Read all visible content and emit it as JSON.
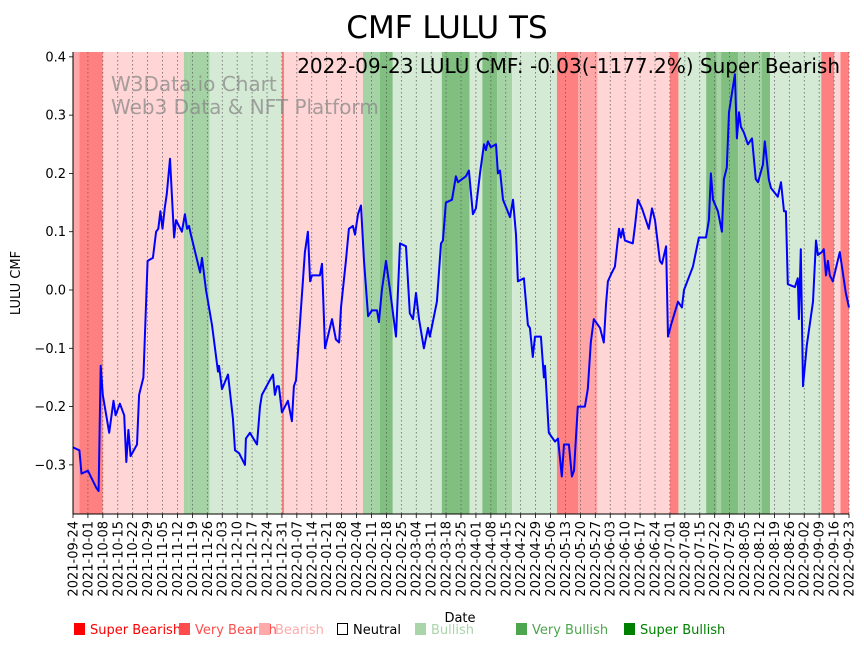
{
  "chart_data": {
    "type": "line",
    "title": "CMF LULU TS",
    "annotation": "2022-09-23 LULU CMF: -0.03(-1177.2%) Super Bearish",
    "watermark": [
      "W3Data.io Chart",
      "Web3 Data & NFT Platform"
    ],
    "xlabel": "Date",
    "ylabel": "LULU CMF",
    "start_date": "2021-09-24",
    "x_range_days": [
      0,
      364
    ],
    "ylim": [
      -0.38,
      0.41
    ],
    "yticks": [
      -0.3,
      -0.2,
      -0.1,
      0.0,
      0.1,
      0.2,
      0.3,
      0.4
    ],
    "ytick_labels": [
      "−0.3",
      "−0.2",
      "−0.1",
      "0.0",
      "0.1",
      "0.2",
      "0.3",
      "0.4"
    ],
    "xtick_labels": [
      "2021-09-24",
      "2021-10-01",
      "2021-10-08",
      "2021-10-15",
      "2021-10-22",
      "2021-10-29",
      "2021-11-05",
      "2021-11-12",
      "2021-11-19",
      "2021-11-26",
      "2021-12-03",
      "2021-12-10",
      "2021-12-17",
      "2021-12-24",
      "2021-12-31",
      "2022-01-07",
      "2022-01-14",
      "2022-01-21",
      "2022-01-28",
      "2022-02-04",
      "2022-02-11",
      "2022-02-18",
      "2022-02-25",
      "2022-03-04",
      "2022-03-11",
      "2022-03-18",
      "2022-03-25",
      "2022-04-01",
      "2022-04-08",
      "2022-04-15",
      "2022-04-22",
      "2022-04-29",
      "2022-05-06",
      "2022-05-13",
      "2022-05-20",
      "2022-05-27",
      "2022-06-03",
      "2022-06-10",
      "2022-06-17",
      "2022-06-24",
      "2022-07-01",
      "2022-07-08",
      "2022-07-15",
      "2022-07-22",
      "2022-07-29",
      "2022-08-05",
      "2022-08-12",
      "2022-08-19",
      "2022-08-26",
      "2022-09-02",
      "2022-09-09",
      "2022-09-16",
      "2022-09-23"
    ],
    "grid": "vertical-dotted",
    "line_color": "#0000ff",
    "series": [
      {
        "name": "LULU CMF",
        "days": [
          0,
          3,
          4,
          7,
          11,
          12,
          13,
          14,
          17,
          19,
          20,
          22,
          24,
          25,
          26,
          27,
          30,
          31,
          33,
          35,
          37.5,
          39,
          40,
          41,
          42,
          43,
          44,
          45.5,
          47.4,
          48.3,
          51.1,
          52.5,
          53.5,
          54.4,
          55.3,
          59.6,
          60.5,
          62.4,
          65.2,
          68,
          68.5,
          69.9,
          72.7,
          75,
          76,
          77.9,
          80.7,
          81.1,
          83,
          86.3,
          87.7,
          88.6,
          91.5,
          93.8,
          94.7,
          95.7,
          96.6,
          98,
          100.8,
          102.7,
          103.6,
          104.6,
          108.8,
          110.2,
          111.2,
          112.1,
          115.8,
          116.8,
          118.2,
          121.5,
          123.3,
          124.8,
          125.7,
          128,
          129.4,
          131.3,
          132.3,
          133.7,
          135.1,
          136.5,
          138.4,
          140.2,
          142.6,
          143.5,
          144.9,
          146.8,
          148.7,
          151.5,
          153.4,
          156.2,
          158,
          159.5,
          160.9,
          162.3,
          164.6,
          166.5,
          167.4,
          170.7,
          172.6,
          173.5,
          174.9,
          177.8,
          179.6,
          180.6,
          184.3,
          185.7,
          187.6,
          189,
          190.9,
          192.8,
          193.7,
          194.6,
          196,
          198.4,
          199.3,
          200.3,
          201.7,
          205,
          206.4,
          207.8,
          208.7,
          211.5,
          213.4,
          214.3,
          215.7,
          216.7,
          219.5,
          220.9,
          221.4,
          223.2,
          226.1,
          227.5,
          229.3,
          230.3,
          232.6,
          234,
          235,
          236.8,
          240.1,
          241.5,
          242.9,
          244.3,
          247.2,
          249,
          250,
          250.9,
          252.8,
          254.2,
          256.1,
          257,
          257.9,
          258.9,
          262.6,
          263.6,
          265,
          266.9,
          270.1,
          271.6,
          273,
          275.3,
          276.3,
          278.2,
          279.1,
          280.5,
          283.8,
          285.6,
          286.6,
          290.8,
          293.6,
          296.9,
          298.3,
          299.2,
          300.2,
          302.5,
          304.4,
          305.3,
          306.7,
          307.7,
          310.5,
          311.4,
          312.4,
          313.3,
          314.7,
          316.6,
          318.5,
          320.3,
          321.3,
          323.6,
          324.5,
          326.4,
          327.4,
          330.6,
          332.1,
          333.5,
          334.4,
          335.3,
          338.6,
          340,
          340.5,
          341.4,
          342.4,
          344.2,
          347.1,
          348.5,
          349.4,
          351.3,
          352.2,
          353.2,
          354.1,
          355,
          356.4,
          359.7,
          361.1,
          362.5,
          364
        ],
        "values": [
          -0.27,
          -0.275,
          -0.315,
          -0.31,
          -0.34,
          -0.345,
          -0.13,
          -0.18,
          -0.245,
          -0.19,
          -0.215,
          -0.195,
          -0.215,
          -0.295,
          -0.24,
          -0.285,
          -0.265,
          -0.18,
          -0.15,
          0.05,
          0.055,
          0.1,
          0.105,
          0.135,
          0.105,
          0.14,
          0.165,
          0.225,
          0.09,
          0.12,
          0.1,
          0.13,
          0.105,
          0.11,
          0.095,
          0.03,
          0.055,
          0.0,
          -0.06,
          -0.14,
          -0.13,
          -0.17,
          -0.145,
          -0.22,
          -0.275,
          -0.28,
          -0.3,
          -0.255,
          -0.245,
          -0.265,
          -0.2,
          -0.18,
          -0.16,
          -0.145,
          -0.18,
          -0.165,
          -0.165,
          -0.21,
          -0.19,
          -0.225,
          -0.165,
          -0.155,
          0.065,
          0.1,
          0.015,
          0.025,
          0.025,
          0.045,
          -0.1,
          -0.05,
          -0.085,
          -0.09,
          -0.03,
          0.05,
          0.105,
          0.11,
          0.095,
          0.13,
          0.145,
          0.05,
          -0.045,
          -0.035,
          -0.035,
          -0.055,
          0.0,
          0.05,
          0.0,
          -0.08,
          0.08,
          0.075,
          -0.04,
          -0.05,
          -0.005,
          -0.05,
          -0.1,
          -0.065,
          -0.08,
          -0.02,
          0.08,
          0.085,
          0.15,
          0.155,
          0.195,
          0.185,
          0.195,
          0.205,
          0.13,
          0.14,
          0.2,
          0.25,
          0.24,
          0.255,
          0.245,
          0.25,
          0.2,
          0.205,
          0.155,
          0.125,
          0.155,
          0.095,
          0.015,
          0.02,
          -0.06,
          -0.065,
          -0.115,
          -0.08,
          -0.08,
          -0.15,
          -0.13,
          -0.245,
          -0.26,
          -0.255,
          -0.32,
          -0.265,
          -0.265,
          -0.32,
          -0.31,
          -0.2,
          -0.2,
          -0.17,
          -0.09,
          -0.05,
          -0.065,
          -0.09,
          -0.025,
          0.015,
          0.03,
          0.04,
          0.105,
          0.09,
          0.105,
          0.085,
          0.08,
          0.11,
          0.155,
          0.14,
          0.105,
          0.14,
          0.12,
          0.05,
          0.045,
          0.075,
          -0.08,
          -0.06,
          -0.02,
          -0.03,
          0.0,
          0.04,
          0.09,
          0.09,
          0.12,
          0.2,
          0.155,
          0.135,
          0.1,
          0.19,
          0.21,
          0.305,
          0.37,
          0.26,
          0.305,
          0.28,
          0.27,
          0.25,
          0.26,
          0.19,
          0.185,
          0.215,
          0.255,
          0.19,
          0.175,
          0.16,
          0.185,
          0.135,
          0.135,
          0.01,
          0.005,
          0.02,
          -0.05,
          0.07,
          -0.165,
          -0.095,
          -0.02,
          0.085,
          0.06,
          0.065,
          0.07,
          0.025,
          0.05,
          0.025,
          0.015,
          0.065,
          0.03,
          -0.005,
          -0.03
        ]
      }
    ],
    "bands": [
      {
        "from": 0,
        "to": 3,
        "level": "very_bearish"
      },
      {
        "from": 3,
        "to": 14,
        "level": "super_bearish"
      },
      {
        "from": 14,
        "to": 52,
        "level": "bearish"
      },
      {
        "from": 52,
        "to": 54,
        "level": "very_bullish"
      },
      {
        "from": 54,
        "to": 64,
        "level": "very_bullish"
      },
      {
        "from": 64,
        "to": 98,
        "level": "bullish"
      },
      {
        "from": 98,
        "to": 99,
        "level": "super_bearish"
      },
      {
        "from": 99,
        "to": 136,
        "level": "bearish"
      },
      {
        "from": 136,
        "to": 144,
        "level": "very_bullish"
      },
      {
        "from": 144,
        "to": 150,
        "level": "super_bullish"
      },
      {
        "from": 150,
        "to": 173,
        "level": "bullish"
      },
      {
        "from": 173,
        "to": 186,
        "level": "super_bullish"
      },
      {
        "from": 186,
        "to": 192,
        "level": "bullish"
      },
      {
        "from": 192,
        "to": 199,
        "level": "super_bullish"
      },
      {
        "from": 199,
        "to": 206,
        "level": "very_bullish"
      },
      {
        "from": 206,
        "to": 227,
        "level": "bullish"
      },
      {
        "from": 227,
        "to": 237,
        "level": "super_bearish"
      },
      {
        "from": 237,
        "to": 246,
        "level": "very_bearish"
      },
      {
        "from": 246,
        "to": 280,
        "level": "bearish"
      },
      {
        "from": 280,
        "to": 284,
        "level": "super_bearish"
      },
      {
        "from": 284,
        "to": 297,
        "level": "bullish"
      },
      {
        "from": 297,
        "to": 302,
        "level": "super_bullish"
      },
      {
        "from": 302,
        "to": 304,
        "level": "very_bullish"
      },
      {
        "from": 304,
        "to": 312,
        "level": "super_bullish"
      },
      {
        "from": 312,
        "to": 323,
        "level": "very_bullish"
      },
      {
        "from": 323,
        "to": 327,
        "level": "super_bullish"
      },
      {
        "from": 327,
        "to": 351,
        "level": "bullish"
      },
      {
        "from": 351,
        "to": 357,
        "level": "super_bearish"
      },
      {
        "from": 357,
        "to": 360,
        "level": "bearish"
      },
      {
        "from": 360,
        "to": 364,
        "level": "super_bearish"
      }
    ],
    "band_colors": {
      "super_bearish": "#ff8080",
      "very_bearish": "#ffa6a6",
      "bearish": "#ffd5d5",
      "bullish": "#d5ead5",
      "very_bullish": "#a6d3a6",
      "super_bullish": "#80bf80"
    },
    "legend": [
      {
        "label": "Super Bearish",
        "color": "#ff0000",
        "text_color": "#ff0000"
      },
      {
        "label": "Very Bearish",
        "color": "#ff4d4d",
        "text_color": "#ff4d4d"
      },
      {
        "label": "Bearish",
        "color": "#ffaaaa",
        "text_color": "#ffaaaa"
      },
      {
        "label": "Neutral",
        "color": "none",
        "text_color": "#000000"
      },
      {
        "label": "Bullish",
        "color": "#aad4aa",
        "text_color": "#aad4aa"
      },
      {
        "label": "Very Bullish",
        "color": "#4da64d",
        "text_color": "#4da64d"
      },
      {
        "label": "Super Bullish",
        "color": "#008000",
        "text_color": "#008000"
      }
    ],
    "legend_placement": "bottom"
  }
}
